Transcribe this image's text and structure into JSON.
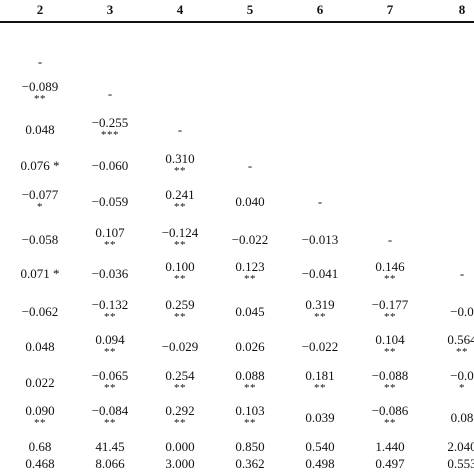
{
  "columns": [
    "2",
    "3",
    "4",
    "5",
    "6",
    "7",
    "8"
  ],
  "rows": [
    [
      [
        "-",
        ""
      ]
    ],
    [
      [
        "−0.089",
        "**"
      ],
      [
        "-",
        ""
      ]
    ],
    [
      [
        "0.048",
        ""
      ],
      [
        "−0.255",
        "***"
      ],
      [
        "-",
        ""
      ]
    ],
    [
      [
        "0.076 *",
        ""
      ],
      [
        "−0.060",
        ""
      ],
      [
        "0.310",
        "**"
      ],
      [
        "-",
        ""
      ]
    ],
    [
      [
        "−0.077",
        "*"
      ],
      [
        "−0.059",
        ""
      ],
      [
        "0.241",
        "**"
      ],
      [
        "0.040",
        ""
      ],
      [
        "-",
        ""
      ]
    ],
    [
      [
        "−0.058",
        ""
      ],
      [
        "0.107",
        "**"
      ],
      [
        "−0.124",
        "**"
      ],
      [
        "−0.022",
        ""
      ],
      [
        "−0.013",
        ""
      ],
      [
        "-",
        ""
      ]
    ],
    [
      [
        "0.071 *",
        ""
      ],
      [
        "−0.036",
        ""
      ],
      [
        "0.100",
        "**"
      ],
      [
        "0.123",
        "**"
      ],
      [
        "−0.041",
        ""
      ],
      [
        "0.146",
        "**"
      ],
      [
        "-",
        ""
      ]
    ],
    [
      [
        "−0.062",
        ""
      ],
      [
        "−0.132",
        "**"
      ],
      [
        "0.259",
        "**"
      ],
      [
        "0.045",
        ""
      ],
      [
        "0.319",
        "**"
      ],
      [
        "−0.177",
        "**"
      ],
      [
        "−0.0",
        ""
      ]
    ],
    [
      [
        "0.048",
        ""
      ],
      [
        "0.094",
        "**"
      ],
      [
        "−0.029",
        ""
      ],
      [
        "0.026",
        ""
      ],
      [
        "−0.022",
        ""
      ],
      [
        "0.104",
        "**"
      ],
      [
        "0.564",
        "**"
      ]
    ],
    [
      [
        "0.022",
        ""
      ],
      [
        "−0.065",
        "**"
      ],
      [
        "0.254",
        "**"
      ],
      [
        "0.088",
        "**"
      ],
      [
        "0.181",
        "**"
      ],
      [
        "−0.088",
        "**"
      ],
      [
        "−0.0",
        "*"
      ]
    ],
    [
      [
        "0.090",
        "**"
      ],
      [
        "−0.084",
        "**"
      ],
      [
        "0.292",
        "**"
      ],
      [
        "0.103",
        "**"
      ],
      [
        "0.039",
        ""
      ],
      [
        "−0.086",
        "**"
      ],
      [
        "0.08",
        ""
      ]
    ],
    [
      [
        "0.68",
        ""
      ],
      [
        "41.45",
        ""
      ],
      [
        "0.000",
        ""
      ],
      [
        "0.850",
        ""
      ],
      [
        "0.540",
        ""
      ],
      [
        "1.440",
        ""
      ],
      [
        "2.040",
        ""
      ]
    ],
    [
      [
        "0.468",
        ""
      ],
      [
        "8.066",
        ""
      ],
      [
        "3.000",
        ""
      ],
      [
        "0.362",
        ""
      ],
      [
        "0.498",
        ""
      ],
      [
        "0.497",
        ""
      ],
      [
        "0.553",
        ""
      ]
    ]
  ]
}
